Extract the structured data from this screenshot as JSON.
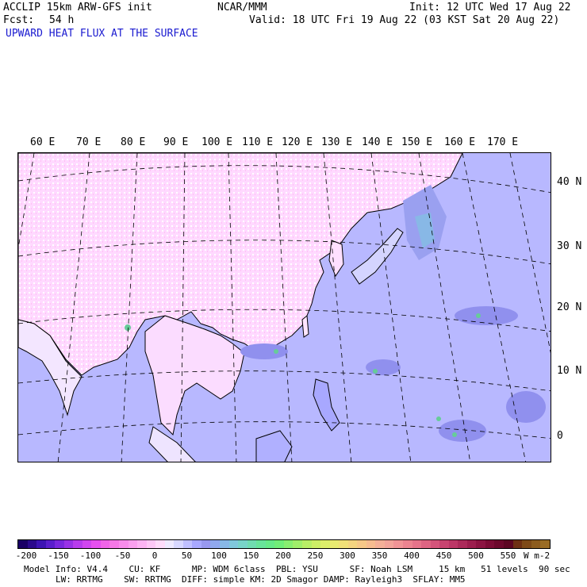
{
  "header": {
    "model": "ACCLIP 15km ARW-GFS init",
    "center": "NCAR/MMM",
    "init": "Init: 12 UTC Wed 17 Aug 22",
    "fcst_label": "Fcst:",
    "fcst_value": "54 h",
    "valid": "Valid: 18 UTC Fri 19 Aug 22 (03 KST Sat 20 Aug 22)",
    "field": "UPWARD HEAT FLUX AT THE SURFACE"
  },
  "map": {
    "region": "Asia / Western Pacific",
    "projection": "conic",
    "lon_labels": [
      "60 E",
      "70 E",
      "80 E",
      "90 E",
      "100 E",
      "110 E",
      "120 E",
      "130 E",
      "140 E",
      "150 E",
      "160 E",
      "170 E"
    ],
    "lat_labels": [
      "40 N",
      "30 N",
      "20 N",
      "10 N",
      "0"
    ],
    "colors": {
      "land_negative": "#ffccff",
      "ocean_low": "#b8b8ff",
      "ocean_mid": "#9999ee",
      "high": "#66cc99"
    }
  },
  "colorbar": {
    "ticks": [
      "-200",
      "-150",
      "-100",
      "-50",
      "0",
      "50",
      "100",
      "150",
      "200",
      "250",
      "300",
      "350",
      "400",
      "450",
      "500",
      "550"
    ],
    "unit": "W m-2",
    "colors": [
      "#1a0066",
      "#2b0a8c",
      "#3d14b3",
      "#5a1ecc",
      "#7a28dd",
      "#9932e6",
      "#b83ced",
      "#d146f0",
      "#e650f0",
      "#f064e8",
      "#f578e6",
      "#f88ceb",
      "#faa0ef",
      "#fcb4f3",
      "#fdc8f6",
      "#fedcfa",
      "#eeeaff",
      "#d8d8ff",
      "#c0c0ff",
      "#a8a8ff",
      "#9898f0",
      "#90a8ee",
      "#88b8e6",
      "#80c8dc",
      "#78d4c8",
      "#70dcb0",
      "#68e49a",
      "#66ea88",
      "#70ee78",
      "#88ee70",
      "#a0ee6a",
      "#b8ee66",
      "#ccee66",
      "#dcee6a",
      "#e8ea70",
      "#f0e078",
      "#f4d480",
      "#f6c888",
      "#f6bc90",
      "#f4b098",
      "#f2a49a",
      "#f09496",
      "#ec8490",
      "#e6748a",
      "#de6482",
      "#d4547a",
      "#c84470",
      "#bc3666",
      "#ac2a5a",
      "#9c1e4e",
      "#8c1442",
      "#7c0c36",
      "#6c082c",
      "#5c0622",
      "#6e3014",
      "#7e4a18",
      "#8c5c1e",
      "#9a6c24"
    ]
  },
  "model_info": {
    "line1": "Model Info: V4.4    CU: KF      MP: WDM 6class  PBL: YSU      SF: Noah LSM     15 km   51 levels  90 sec",
    "line2": "LW: RRTMG    SW: RRTMG  DIFF: simple KM: 2D Smagor DAMP: Rayleigh3  SFLAY: MM5"
  }
}
